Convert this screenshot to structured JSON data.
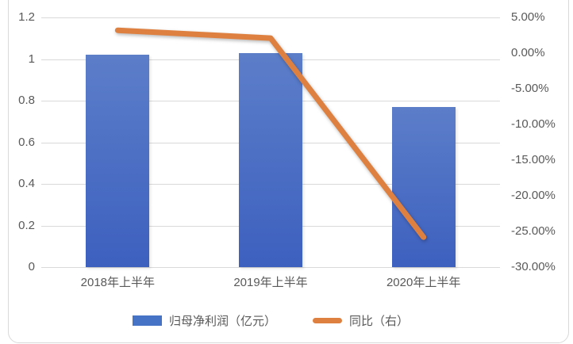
{
  "chart_data": {
    "type": "combo-bar-line",
    "title": "",
    "categories": [
      "2018年上半年",
      "2019年上半年",
      "2020年上半年"
    ],
    "series": [
      {
        "name": "归母净利润（亿元）",
        "chart_type": "bar",
        "axis": "left",
        "values": [
          1.02,
          1.03,
          0.77
        ],
        "color": "#4673c6",
        "gradient_top": "#5c7ec9",
        "gradient_bottom": "#3d60bf"
      },
      {
        "name": "同比（右）",
        "chart_type": "line",
        "axis": "right",
        "values": [
          3.2,
          2.1,
          -25.8
        ],
        "unit": "%",
        "color": "#de8140"
      }
    ],
    "left_axis": {
      "min": 0,
      "max": 1.2,
      "tick_labels": [
        "1.2",
        "1",
        "0.8",
        "0.6",
        "0.4",
        "0.2",
        "0"
      ]
    },
    "right_axis": {
      "min": -30,
      "max": 5,
      "unit": "%",
      "tick_labels": [
        "5.00%",
        "0.00%",
        "-5.00%",
        "-10.00%",
        "-15.00%",
        "-20.00%",
        "-25.00%",
        "-30.00%"
      ]
    },
    "grid": true,
    "legend_position": "bottom",
    "colors": {
      "gridline": "#d9d9d9",
      "axis_text": "#595959",
      "border": "#d9d9d9",
      "background": "#ffffff"
    }
  }
}
